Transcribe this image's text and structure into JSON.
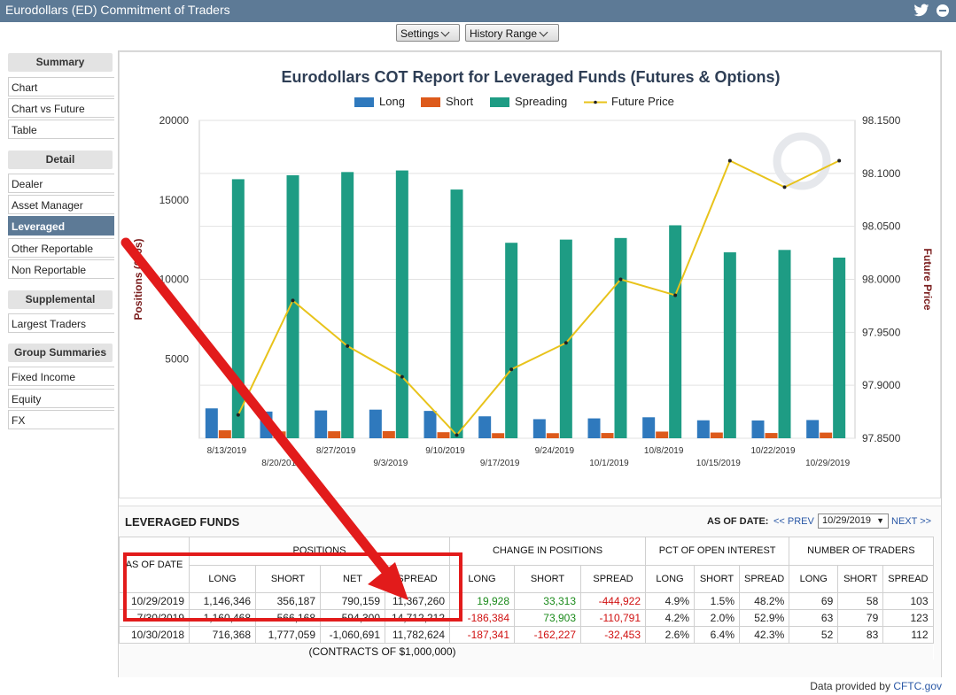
{
  "window": {
    "title": "Eurodollars (ED) Commitment of Traders"
  },
  "toolbar": {
    "settings_label": "Settings",
    "history_label": "History Range"
  },
  "sidebar": {
    "summary_header": "Summary",
    "summary_items": [
      "Chart",
      "Chart vs Future",
      "Table"
    ],
    "detail_header": "Detail",
    "detail_items": [
      "Dealer",
      "Asset Manager",
      "Leveraged",
      "Other Reportable",
      "Non Reportable"
    ],
    "supplemental_header": "Supplemental",
    "supplemental_items": [
      "Largest Traders"
    ],
    "group_header": "Group Summaries",
    "group_items": [
      "Fixed Income",
      "Equity",
      "FX"
    ]
  },
  "colors": {
    "long": "#2f79bd",
    "short": "#dd5a1b",
    "spreading": "#1e9c84",
    "price": "#e8c31b",
    "header": "#5d7a96"
  },
  "chart_data": {
    "type": "bar",
    "title": "Eurodollars COT Report for Leveraged Funds (Futures & Options)",
    "ylabel": "Positions (000s)",
    "y2label": "Future Price",
    "ylim": [
      0,
      20000
    ],
    "y2lim": [
      97.85,
      98.15
    ],
    "yticks": [
      "20000",
      "15000",
      "10000",
      "5000"
    ],
    "y2ticks": [
      "98.1500",
      "98.1000",
      "98.0500",
      "98.0000",
      "97.9500",
      "97.9000",
      "97.8500"
    ],
    "categories": [
      "8/13/2019",
      "8/20/2019",
      "8/27/2019",
      "9/3/2019",
      "9/10/2019",
      "9/17/2019",
      "9/24/2019",
      "10/1/2019",
      "10/8/2019",
      "10/15/2019",
      "10/22/2019",
      "10/29/2019"
    ],
    "legend": [
      "Long",
      "Short",
      "Spreading",
      "Future Price"
    ],
    "series": [
      {
        "name": "Long",
        "values": [
          1880,
          1680,
          1750,
          1800,
          1720,
          1380,
          1200,
          1250,
          1320,
          1130,
          1120,
          1146
        ]
      },
      {
        "name": "Short",
        "values": [
          500,
          430,
          440,
          450,
          380,
          320,
          320,
          330,
          420,
          360,
          330,
          356
        ]
      },
      {
        "name": "Spreading",
        "values": [
          16300,
          16550,
          16750,
          16850,
          15650,
          12300,
          12500,
          12600,
          13400,
          11700,
          11850,
          11367
        ]
      },
      {
        "name": "Future Price",
        "values": [
          97.872,
          97.98,
          97.937,
          97.908,
          97.853,
          97.915,
          97.94,
          98.0,
          97.985,
          98.112,
          98.087,
          98.112
        ]
      }
    ]
  },
  "table": {
    "title": "LEVERAGED FUNDS",
    "as_of_label": "AS OF DATE:",
    "prev_label": "<< PREV",
    "date_value": "10/29/2019",
    "next_label": "NEXT >>",
    "group_headers": [
      "POSITIONS",
      "CHANGE IN POSITIONS",
      "PCT OF OPEN INTEREST",
      "NUMBER OF TRADERS"
    ],
    "date_header": "AS OF DATE",
    "col_headers": [
      "LONG",
      "SHORT",
      "NET",
      "SPREAD",
      "LONG",
      "SHORT",
      "SPREAD",
      "LONG",
      "SHORT",
      "SPREAD",
      "LONG",
      "SHORT",
      "SPREAD"
    ],
    "rows": [
      [
        "10/29/2019",
        "1,146,346",
        "356,187",
        "790,159",
        "11,367,260",
        "19,928",
        "33,313",
        "-444,922",
        "4.9%",
        "1.5%",
        "48.2%",
        "69",
        "58",
        "103"
      ],
      [
        "7/30/2019",
        "1,160,468",
        "566,168",
        "594,300",
        "14,712,212",
        "-186,384",
        "73,903",
        "-110,791",
        "4.2%",
        "2.0%",
        "52.9%",
        "63",
        "79",
        "123"
      ],
      [
        "10/30/2018",
        "716,368",
        "1,777,059",
        "-1,060,691",
        "11,782,624",
        "-187,341",
        "-162,227",
        "-32,453",
        "2.6%",
        "6.4%",
        "42.3%",
        "52",
        "83",
        "112"
      ]
    ],
    "footnote": "(CONTRACTS OF $1,000,000)"
  },
  "footer": {
    "prefix": "Data provided by ",
    "link": "CFTC.gov"
  }
}
